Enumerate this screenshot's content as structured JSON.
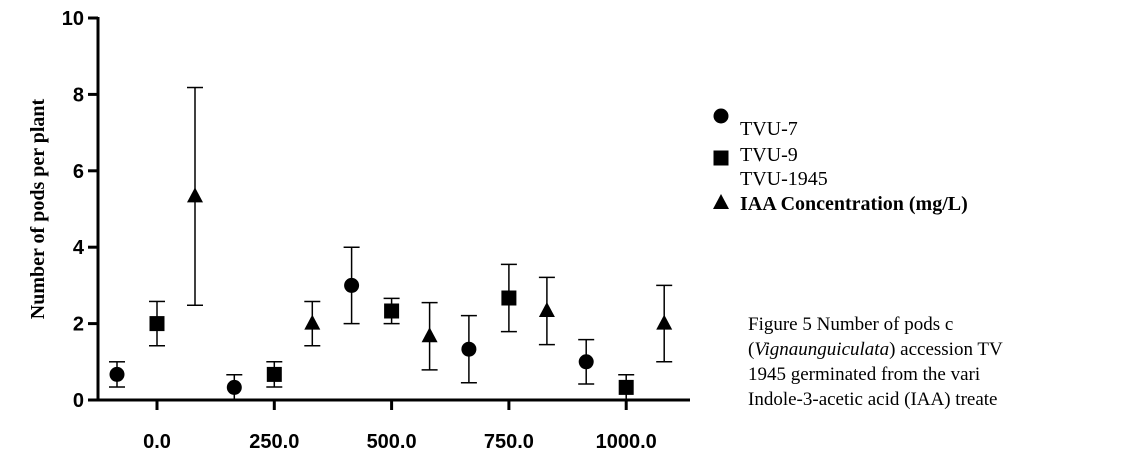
{
  "chart_data": {
    "type": "errorbar-scatter",
    "ylabel": "Number of pods per plant",
    "xlabel": "IAA Concentration (mg/L)",
    "categories": [
      "0.0",
      "250.0",
      "500.0",
      "750.0",
      "1000.0"
    ],
    "ylim": [
      0,
      10
    ],
    "yticks": [
      0,
      2,
      4,
      6,
      8,
      10
    ],
    "series": [
      {
        "name": "TVU-7",
        "marker": "circle",
        "color": "#000000",
        "values": [
          0.67,
          0.33,
          3,
          1.33,
          1
        ],
        "errors": [
          0.33,
          0.33,
          1,
          0.88,
          0.58
        ]
      },
      {
        "name": "TVU-9",
        "marker": "square",
        "color": "#000000",
        "values": [
          2,
          0.67,
          2.33,
          2.67,
          0.33
        ],
        "errors": [
          0.58,
          0.33,
          0.33,
          0.88,
          0.33
        ]
      },
      {
        "name": "TVU-1945",
        "marker": "triangle",
        "color": "#000000",
        "values": [
          5.33,
          2,
          1.67,
          2.33,
          2
        ],
        "errors": [
          2.85,
          0.58,
          0.88,
          0.88,
          1
        ]
      }
    ]
  },
  "caption": [
    [
      "Figure 5 Number of pods c"
    ],
    [
      "(",
      "Vignaunguiculata",
      ") accession TV"
    ],
    [
      "1945 germinated from the vari"
    ],
    [
      "Indole-3-acetic acid (IAA) treate"
    ]
  ]
}
